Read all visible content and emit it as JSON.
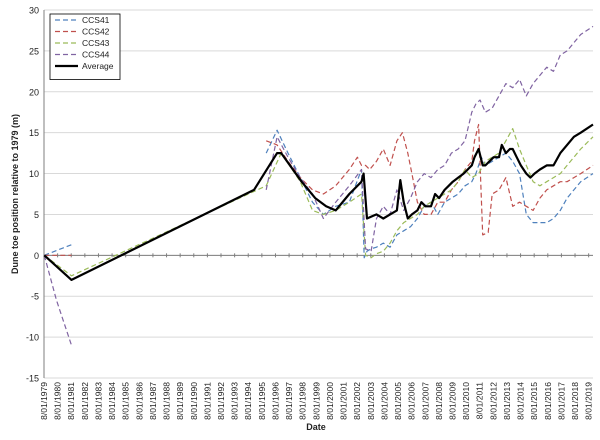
{
  "chart_data": {
    "type": "line",
    "title": "",
    "xlabel": "Date",
    "ylabel": "Dune toe position relative to 1979 (m)",
    "ylim": [
      -15,
      30
    ],
    "yticks": [
      -15,
      -10,
      -5,
      0,
      5,
      10,
      15,
      20,
      25,
      30
    ],
    "xlim": [
      1979.58,
      2019.9
    ],
    "xtick_labels": [
      "8/01/1979",
      "8/01/1980",
      "8/01/1981",
      "8/01/1982",
      "8/01/1983",
      "8/01/1984",
      "8/01/1985",
      "8/01/1986",
      "8/01/1987",
      "8/01/1988",
      "8/01/1989",
      "8/01/1990",
      "8/01/1991",
      "8/01/1992",
      "8/01/1993",
      "8/01/1994",
      "8/01/1995",
      "8/01/1996",
      "8/01/1997",
      "8/01/1998",
      "8/01/1999",
      "8/01/2000",
      "8/01/2001",
      "8/01/2002",
      "8/01/2003",
      "8/01/2004",
      "8/01/2005",
      "8/01/2006",
      "8/01/2007",
      "8/01/2008",
      "8/01/2009",
      "8/01/2010",
      "8/01/2011",
      "8/01/2012",
      "8/01/2013",
      "8/01/2014",
      "8/01/2015",
      "8/01/2016",
      "8/01/2017",
      "8/01/2018",
      "8/01/2019"
    ],
    "grid": "horizontal",
    "legend_position": "top-left",
    "series": [
      {
        "name": "CCS41",
        "color": "#4f81bd",
        "dash": "dashed",
        "x": [
          1979.6,
          1981.6,
          null,
          1995.9,
          1996.7,
          1997.5,
          1998.4,
          1999.3,
          2000.1,
          2001.0,
          2002.0,
          2002.9,
          2003.1,
          2003.3,
          2003.6,
          2004.0,
          2004.5,
          2005.0,
          2005.5,
          2006.0,
          2006.5,
          2007.0,
          2007.5,
          2008.0,
          2008.5,
          2009.0,
          2009.5,
          2010.0,
          2010.5,
          2011.0,
          2011.3,
          2011.7,
          2012.0,
          2012.5,
          2013.0,
          2013.5,
          2014.0,
          2014.5,
          2015.0,
          2015.5,
          2016.0,
          2016.5,
          2017.0,
          2017.5,
          2018.0,
          2018.5,
          2019.0,
          2019.9
        ],
        "y": [
          0,
          1.3,
          null,
          12.5,
          15.3,
          12.5,
          9.5,
          6.5,
          5.0,
          6.0,
          6.5,
          10.5,
          -0.3,
          0.5,
          0.8,
          1.0,
          1.5,
          1.0,
          2.5,
          3.0,
          3.5,
          4.5,
          6.0,
          6.5,
          5.0,
          6.5,
          7.0,
          7.5,
          8.5,
          9.0,
          10.0,
          12.0,
          11.0,
          11.5,
          12.0,
          12.5,
          11.5,
          10.0,
          5.0,
          4.0,
          4.0,
          4.0,
          4.5,
          5.5,
          7.0,
          8.0,
          9.0,
          10.0
        ]
      },
      {
        "name": "CCS42",
        "color": "#c0504d",
        "dash": "dashed",
        "x": [
          1979.6,
          1980.6,
          1981.6,
          null,
          1995.9,
          1996.7,
          1997.5,
          1998.4,
          1999.3,
          2000.1,
          2001.0,
          2002.0,
          2002.6,
          2002.9,
          2003.2,
          2003.5,
          2004.0,
          2004.5,
          2005.0,
          2005.5,
          2005.9,
          2006.3,
          2006.6,
          2007.0,
          2007.5,
          2008.0,
          2008.5,
          2009.0,
          2009.5,
          2010.0,
          2010.5,
          2011.0,
          2011.2,
          2011.5,
          2011.8,
          2012.2,
          2012.5,
          2013.0,
          2013.5,
          2014.0,
          2014.5,
          2015.0,
          2015.5,
          2016.0,
          2016.5,
          2017.0,
          2017.5,
          2018.0,
          2018.5,
          2019.0,
          2019.9
        ],
        "y": [
          0,
          0,
          0,
          null,
          14.0,
          13.5,
          11.5,
          9.5,
          8.0,
          7.5,
          8.5,
          10.5,
          12.0,
          11.0,
          11.0,
          10.5,
          11.5,
          13.0,
          11.0,
          14.0,
          15.0,
          12.5,
          10.0,
          6.5,
          5.0,
          5.0,
          6.5,
          6.5,
          8.0,
          9.0,
          10.5,
          11.5,
          14.0,
          16.0,
          2.5,
          2.8,
          7.5,
          8.0,
          9.5,
          6.0,
          6.5,
          6.0,
          5.5,
          7.0,
          8.0,
          8.5,
          9.0,
          9.0,
          9.5,
          10.0,
          11.0
        ]
      },
      {
        "name": "CCS43",
        "color": "#9bbb59",
        "dash": "dashed",
        "x": [
          1979.6,
          1981.6,
          1995.9,
          1997.0,
          1998.4,
          1999.3,
          2000.1,
          2001.0,
          2002.0,
          2002.9,
          2003.2,
          2003.6,
          2004.0,
          2004.5,
          2005.0,
          2005.5,
          2006.0,
          2006.5,
          2007.0,
          2007.5,
          2008.0,
          2008.5,
          2009.0,
          2009.5,
          2010.0,
          2010.5,
          2011.0,
          2011.5,
          2012.0,
          2012.5,
          2013.0,
          2013.5,
          2014.0,
          2014.5,
          2015.0,
          2015.5,
          2016.0,
          2016.5,
          2017.0,
          2017.5,
          2018.0,
          2018.5,
          2019.0,
          2019.9
        ],
        "y": [
          0,
          -2.5,
          8.5,
          12.5,
          9.0,
          5.5,
          5.0,
          5.5,
          6.5,
          7.5,
          0.0,
          -0.3,
          0.2,
          0.5,
          1.5,
          3.0,
          4.0,
          4.5,
          5.0,
          6.0,
          6.5,
          7.0,
          7.5,
          8.0,
          9.0,
          10.5,
          9.5,
          10.0,
          11.5,
          12.0,
          12.5,
          14.0,
          15.5,
          13.0,
          11.0,
          9.0,
          8.5,
          9.0,
          9.5,
          10.0,
          11.0,
          12.0,
          13.0,
          14.5
        ]
      },
      {
        "name": "CCS44",
        "color": "#8064a2",
        "dash": "dashed",
        "x": [
          1979.6,
          1980.5,
          1981.6,
          null,
          1995.9,
          1996.7,
          1997.5,
          1998.4,
          1999.3,
          2000.1,
          2001.0,
          2002.0,
          2002.9,
          2003.2,
          2003.6,
          2004.0,
          2004.5,
          2005.0,
          2005.5,
          2006.0,
          2006.5,
          2007.0,
          2007.5,
          2008.0,
          2008.5,
          2009.0,
          2009.5,
          2010.0,
          2010.5,
          2011.0,
          2011.3,
          2011.6,
          2012.0,
          2012.5,
          2013.0,
          2013.5,
          2014.0,
          2014.5,
          2015.0,
          2015.5,
          2016.0,
          2016.5,
          2017.0,
          2017.5,
          2018.0,
          2018.5,
          2019.0,
          2019.9
        ],
        "y": [
          0,
          -5.5,
          -11.0,
          null,
          8.0,
          14.5,
          12.0,
          9.5,
          7.5,
          4.5,
          6.5,
          8.5,
          10.5,
          0.8,
          0.5,
          4.5,
          6.0,
          5.0,
          8.0,
          5.5,
          7.0,
          9.0,
          10.0,
          9.5,
          10.5,
          11.0,
          12.5,
          13.0,
          14.0,
          17.5,
          18.5,
          19.0,
          17.5,
          18.0,
          19.5,
          21.0,
          20.5,
          21.5,
          19.5,
          21.0,
          22.0,
          23.0,
          22.5,
          24.5,
          25.0,
          26.0,
          27.0,
          28.0
        ]
      },
      {
        "name": "Average",
        "color": "#000000",
        "dash": "solid",
        "x": [
          1979.6,
          1981.6,
          1995.0,
          1996.7,
          1997.0,
          1998.5,
          1999.5,
          2000.3,
          2001.0,
          2002.0,
          2002.9,
          2003.05,
          2003.3,
          2003.7,
          2004.0,
          2004.5,
          2005.0,
          2005.5,
          2005.75,
          2006.0,
          2006.3,
          2006.6,
          2007.0,
          2007.3,
          2007.6,
          2008.0,
          2008.3,
          2008.6,
          2009.0,
          2009.3,
          2009.6,
          2010.0,
          2010.4,
          2010.7,
          2011.0,
          2011.2,
          2011.5,
          2011.8,
          2012.0,
          2012.3,
          2012.6,
          2013.0,
          2013.2,
          2013.5,
          2013.8,
          2014.0,
          2014.3,
          2014.6,
          2015.0,
          2015.3,
          2015.6,
          2016.0,
          2016.5,
          2017.0,
          2017.5,
          2018.0,
          2018.5,
          2019.0,
          2019.9
        ],
        "y": [
          0,
          -3.0,
          8.0,
          12.5,
          12.5,
          9.0,
          7.0,
          6.0,
          5.5,
          7.5,
          9.0,
          10.0,
          4.5,
          4.8,
          5.0,
          4.5,
          5.0,
          5.5,
          9.2,
          6.5,
          4.5,
          5.0,
          5.5,
          6.5,
          6.0,
          6.0,
          7.5,
          7.0,
          8.0,
          8.5,
          9.0,
          9.5,
          10.0,
          10.5,
          11.0,
          12.0,
          13.0,
          11.0,
          11.0,
          11.5,
          12.0,
          12.0,
          13.5,
          12.5,
          13.0,
          13.0,
          12.0,
          11.0,
          10.0,
          9.5,
          10.0,
          10.5,
          11.0,
          11.0,
          12.5,
          13.5,
          14.5,
          15.0,
          16.0
        ]
      }
    ]
  }
}
